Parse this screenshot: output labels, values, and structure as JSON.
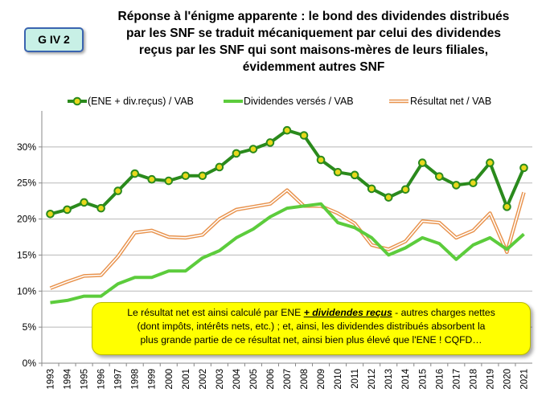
{
  "badge": "G IV 2",
  "title_lines": [
    "Réponse à l'énigme apparente : le bond des dividendes distribués",
    "par les SNF se traduit mécaniquement par celui des dividendes",
    "reçus par les SNF qui sont maisons-mères de leurs filiales,",
    "évidemment autres SNF"
  ],
  "callout": {
    "line1_pre": "Le résultat net est ainsi calculé par ENE ",
    "line1_em": "+ dividendes reçus",
    "line1_post": " - autres charges nettes",
    "line2": "(dont impôts, intérêts nets, etc.) ; et, ainsi, les dividendes distribués absorbent la",
    "line3": "plus grande partie de ce résultat net, ainsi bien plus élevé que l'ENE ! CQFD…"
  },
  "colors": {
    "ene_line": "#2a8a1c",
    "ene_marker": "#e8d81c",
    "dividendes_line": "#5ccc3c",
    "resultat_outer": "#e8924c",
    "resultat_inner": "#ffffff",
    "callout_bg": "#ffff00",
    "badge_bg": "#c8f0e6"
  },
  "chart_data": {
    "type": "line",
    "categories": [
      "1993",
      "1994",
      "1995",
      "1996",
      "1997",
      "1998",
      "1999",
      "2000",
      "2001",
      "2002",
      "2003",
      "2004",
      "2005",
      "2006",
      "2007",
      "2008",
      "2009",
      "2010",
      "2011",
      "2012",
      "2013",
      "2014",
      "2015",
      "2016",
      "2017",
      "2018",
      "2019",
      "2020",
      "2021"
    ],
    "y_ticks": [
      "0%",
      "5%",
      "10%",
      "15%",
      "20%",
      "25%",
      "30%"
    ],
    "ylim": [
      0,
      35
    ],
    "grid": true,
    "legend_position": "top",
    "series": [
      {
        "name": "(ENE + div.reçus) / VAB",
        "values": [
          20.7,
          21.3,
          22.3,
          21.5,
          23.9,
          26.3,
          25.5,
          25.3,
          26.0,
          26.0,
          27.2,
          29.1,
          29.7,
          30.6,
          32.3,
          31.6,
          28.2,
          26.5,
          26.1,
          24.2,
          23.0,
          24.1,
          27.8,
          25.9,
          24.7,
          25.0,
          27.8,
          21.7,
          27.1
        ]
      },
      {
        "name": "Dividendes versés / VAB",
        "values": [
          8.4,
          8.7,
          9.3,
          9.3,
          11.0,
          11.9,
          11.9,
          12.8,
          12.8,
          14.6,
          15.6,
          17.4,
          18.6,
          20.3,
          21.5,
          21.8,
          22.1,
          19.5,
          18.8,
          17.4,
          15.0,
          16.0,
          17.4,
          16.6,
          14.4,
          16.4,
          17.4,
          15.8,
          17.9
        ]
      },
      {
        "name": "Résultat net / VAB",
        "values": [
          10.4,
          11.3,
          12.1,
          12.2,
          14.8,
          18.1,
          18.4,
          17.5,
          17.4,
          17.8,
          20.0,
          21.3,
          21.7,
          22.1,
          24.0,
          21.8,
          21.8,
          20.8,
          19.4,
          16.4,
          15.8,
          16.9,
          19.7,
          19.5,
          17.4,
          18.4,
          20.8,
          15.4,
          23.7
        ]
      }
    ]
  }
}
